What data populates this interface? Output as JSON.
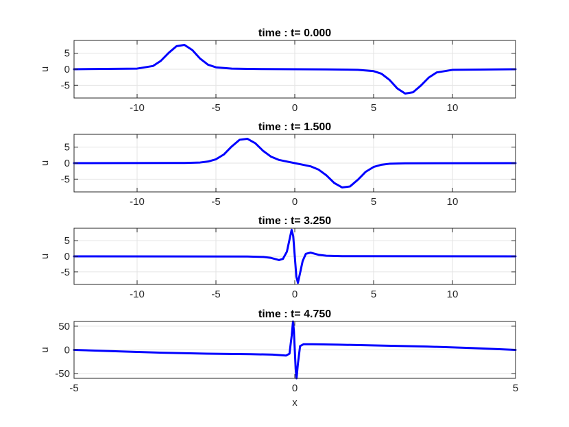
{
  "figure": {
    "background": "#ffffff",
    "line_color": "#0000ff",
    "grid_color": "#e3e3e3"
  },
  "chart_data": [
    {
      "type": "line",
      "title": "time : t= 0.000",
      "xlabel": "",
      "ylabel": "u",
      "xlim": [
        -14,
        14
      ],
      "ylim": [
        -9,
        9
      ],
      "xticks": [
        -10,
        -5,
        0,
        5,
        10
      ],
      "xtick_labels": [
        "-10",
        "-5",
        "0",
        "5",
        "10"
      ],
      "yticks": [
        -5,
        0,
        5
      ],
      "ytick_labels": [
        "-5",
        "0",
        "5"
      ],
      "grid": true,
      "series": [
        {
          "color": "#0000ff",
          "x": [
            -14,
            -10,
            -9,
            -8.5,
            -8,
            -7.5,
            -7,
            -6.5,
            -6,
            -5.5,
            -5,
            -4,
            -3,
            -2,
            -1,
            0,
            1,
            2,
            3,
            4,
            5,
            5.5,
            6,
            6.5,
            7,
            7.5,
            8,
            8.5,
            9,
            10,
            14
          ],
          "y": [
            0,
            0.2,
            1.0,
            2.6,
            5.1,
            7.2,
            7.6,
            6.0,
            3.3,
            1.4,
            0.6,
            0.2,
            0.1,
            0.05,
            0.02,
            0,
            -0.02,
            -0.05,
            -0.1,
            -0.2,
            -0.6,
            -1.4,
            -3.3,
            -6.0,
            -7.6,
            -7.2,
            -5.1,
            -2.6,
            -1.0,
            -0.2,
            0
          ]
        }
      ]
    },
    {
      "type": "line",
      "title": "time : t= 1.500",
      "xlabel": "",
      "ylabel": "u",
      "xlim": [
        -14,
        14
      ],
      "ylim": [
        -9,
        9
      ],
      "xticks": [
        -10,
        -5,
        0,
        5,
        10
      ],
      "xtick_labels": [
        "-10",
        "-5",
        "0",
        "5",
        "10"
      ],
      "yticks": [
        -5,
        0,
        5
      ],
      "ytick_labels": [
        "-5",
        "0",
        "5"
      ],
      "grid": true,
      "series": [
        {
          "color": "#0000ff",
          "x": [
            -14,
            -7,
            -6,
            -5.5,
            -5,
            -4.5,
            -4,
            -3.5,
            -3,
            -2.5,
            -2,
            -1.5,
            -1,
            -0.5,
            0,
            0.5,
            1,
            1.5,
            2,
            2.5,
            3,
            3.5,
            4,
            4.5,
            5,
            5.5,
            6,
            7,
            14
          ],
          "y": [
            0,
            0.05,
            0.2,
            0.5,
            1.2,
            2.7,
            5.2,
            7.3,
            7.6,
            6.2,
            3.8,
            2.0,
            1.0,
            0.5,
            0,
            -0.5,
            -1.0,
            -2.0,
            -3.8,
            -6.2,
            -7.6,
            -7.3,
            -5.2,
            -2.7,
            -1.2,
            -0.5,
            -0.2,
            -0.05,
            0
          ]
        }
      ]
    },
    {
      "type": "line",
      "title": "time : t= 3.250",
      "xlabel": "",
      "ylabel": "u",
      "xlim": [
        -14,
        14
      ],
      "ylim": [
        -9,
        9
      ],
      "xticks": [
        -10,
        -5,
        0,
        5,
        10
      ],
      "xtick_labels": [
        "-10",
        "-5",
        "0",
        "5",
        "10"
      ],
      "yticks": [
        -5,
        0,
        5
      ],
      "ytick_labels": [
        "-5",
        "0",
        "5"
      ],
      "grid": true,
      "series": [
        {
          "color": "#0000ff",
          "x": [
            -14,
            -3,
            -2,
            -1.5,
            -1.0,
            -0.75,
            -0.5,
            -0.35,
            -0.2,
            -0.1,
            0,
            0.1,
            0.2,
            0.35,
            0.5,
            0.7,
            1.0,
            1.5,
            2,
            3,
            14
          ],
          "y": [
            0,
            -0.05,
            -0.2,
            -0.5,
            -1.2,
            -0.8,
            1.5,
            5.0,
            8.5,
            6.5,
            0,
            -6.5,
            -8.5,
            -5.0,
            -1.5,
            0.8,
            1.2,
            0.5,
            0.2,
            0.05,
            0
          ]
        }
      ]
    },
    {
      "type": "line",
      "title": "time : t= 4.750",
      "xlabel": "x",
      "ylabel": "u",
      "xlim": [
        -5,
        5
      ],
      "ylim": [
        -60,
        60
      ],
      "xticks": [
        -5,
        0,
        5
      ],
      "xtick_labels": [
        "-5",
        "0",
        "5"
      ],
      "yticks": [
        -50,
        0,
        50
      ],
      "ytick_labels": [
        "-50",
        "0",
        "50"
      ],
      "grid": true,
      "series": [
        {
          "color": "#0000ff",
          "x": [
            -5,
            -4,
            -3,
            -2,
            -1,
            -0.5,
            -0.2,
            -0.12,
            -0.07,
            -0.04,
            -0.02,
            0,
            0.02,
            0.04,
            0.07,
            0.12,
            0.2,
            0.4,
            1,
            2,
            3,
            4,
            5
          ],
          "y": [
            0,
            -3,
            -6,
            -8,
            -9,
            -10,
            -12,
            -8,
            30,
            60,
            40,
            0,
            -40,
            -60,
            -30,
            8,
            12,
            12,
            11,
            9,
            7,
            4,
            0
          ]
        }
      ]
    }
  ]
}
